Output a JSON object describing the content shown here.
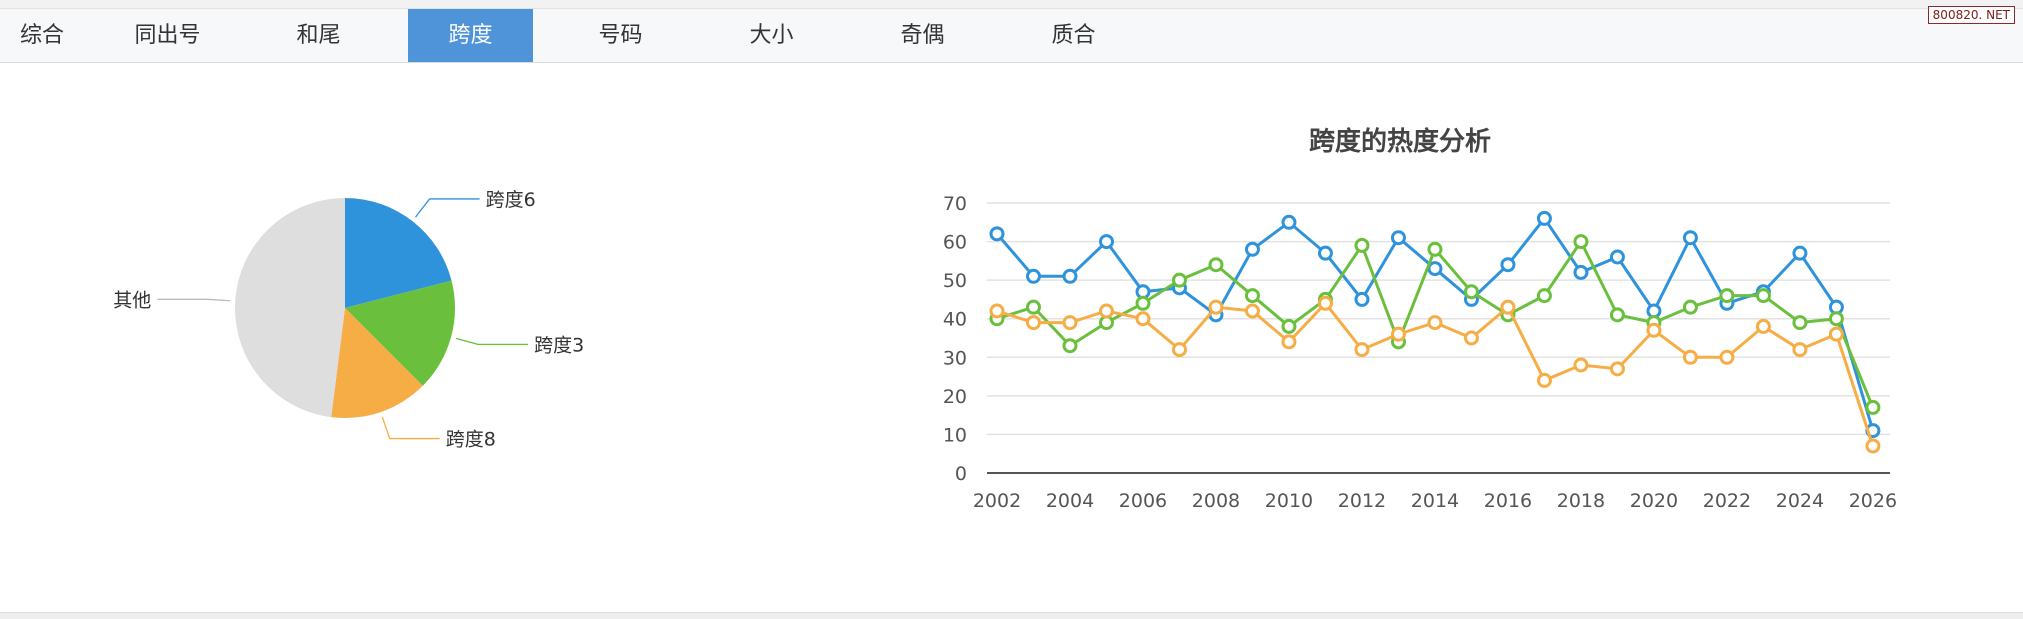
{
  "tabs": [
    "综合",
    "同出号",
    "和尾",
    "跨度",
    "号码",
    "大小",
    "奇偶",
    "质合"
  ],
  "active_tab": 3,
  "watermark": "800820. NET",
  "chart_data": [
    {
      "type": "pie",
      "slices": [
        {
          "label": "跨度6",
          "value": 21,
          "color": "#2f93dc"
        },
        {
          "label": "跨度3",
          "value": 16.5,
          "color": "#6ac03c"
        },
        {
          "label": "跨度8",
          "value": 14.5,
          "color": "#f6ad46"
        },
        {
          "label": "其他",
          "value": 48,
          "color": "#dedede"
        }
      ]
    },
    {
      "type": "line",
      "title": "跨度的热度分析",
      "xlabel": "",
      "ylabel": "",
      "ylim": [
        0,
        70
      ],
      "yticks": [
        0,
        10,
        20,
        30,
        40,
        50,
        60,
        70
      ],
      "xticks": [
        2002,
        2004,
        2006,
        2008,
        2010,
        2012,
        2014,
        2016,
        2018,
        2020,
        2022,
        2024,
        2026
      ],
      "x": [
        2002,
        2003,
        2004,
        2005,
        2006,
        2007,
        2008,
        2009,
        2010,
        2011,
        2012,
        2013,
        2014,
        2015,
        2016,
        2017,
        2018,
        2019,
        2020,
        2021,
        2022,
        2023,
        2024,
        2025,
        2026
      ],
      "grid": true,
      "series": [
        {
          "name": "跨度6",
          "color": "#2f93dc",
          "values": [
            62,
            51,
            51,
            60,
            47,
            48,
            41,
            58,
            65,
            57,
            45,
            61,
            53,
            45,
            54,
            66,
            52,
            56,
            42,
            61,
            44,
            47,
            57,
            43,
            11
          ]
        },
        {
          "name": "跨度3",
          "color": "#6ac03c",
          "values": [
            40,
            43,
            33,
            39,
            44,
            50,
            54,
            46,
            38,
            45,
            59,
            34,
            58,
            47,
            41,
            46,
            60,
            41,
            39,
            43,
            46,
            46,
            39,
            40,
            17
          ]
        },
        {
          "name": "跨度8",
          "color": "#f6ad46",
          "values": [
            42,
            39,
            39,
            42,
            40,
            32,
            43,
            42,
            34,
            44,
            32,
            36,
            39,
            35,
            43,
            24,
            28,
            27,
            37,
            30,
            30,
            38,
            32,
            36,
            7
          ]
        }
      ]
    }
  ]
}
